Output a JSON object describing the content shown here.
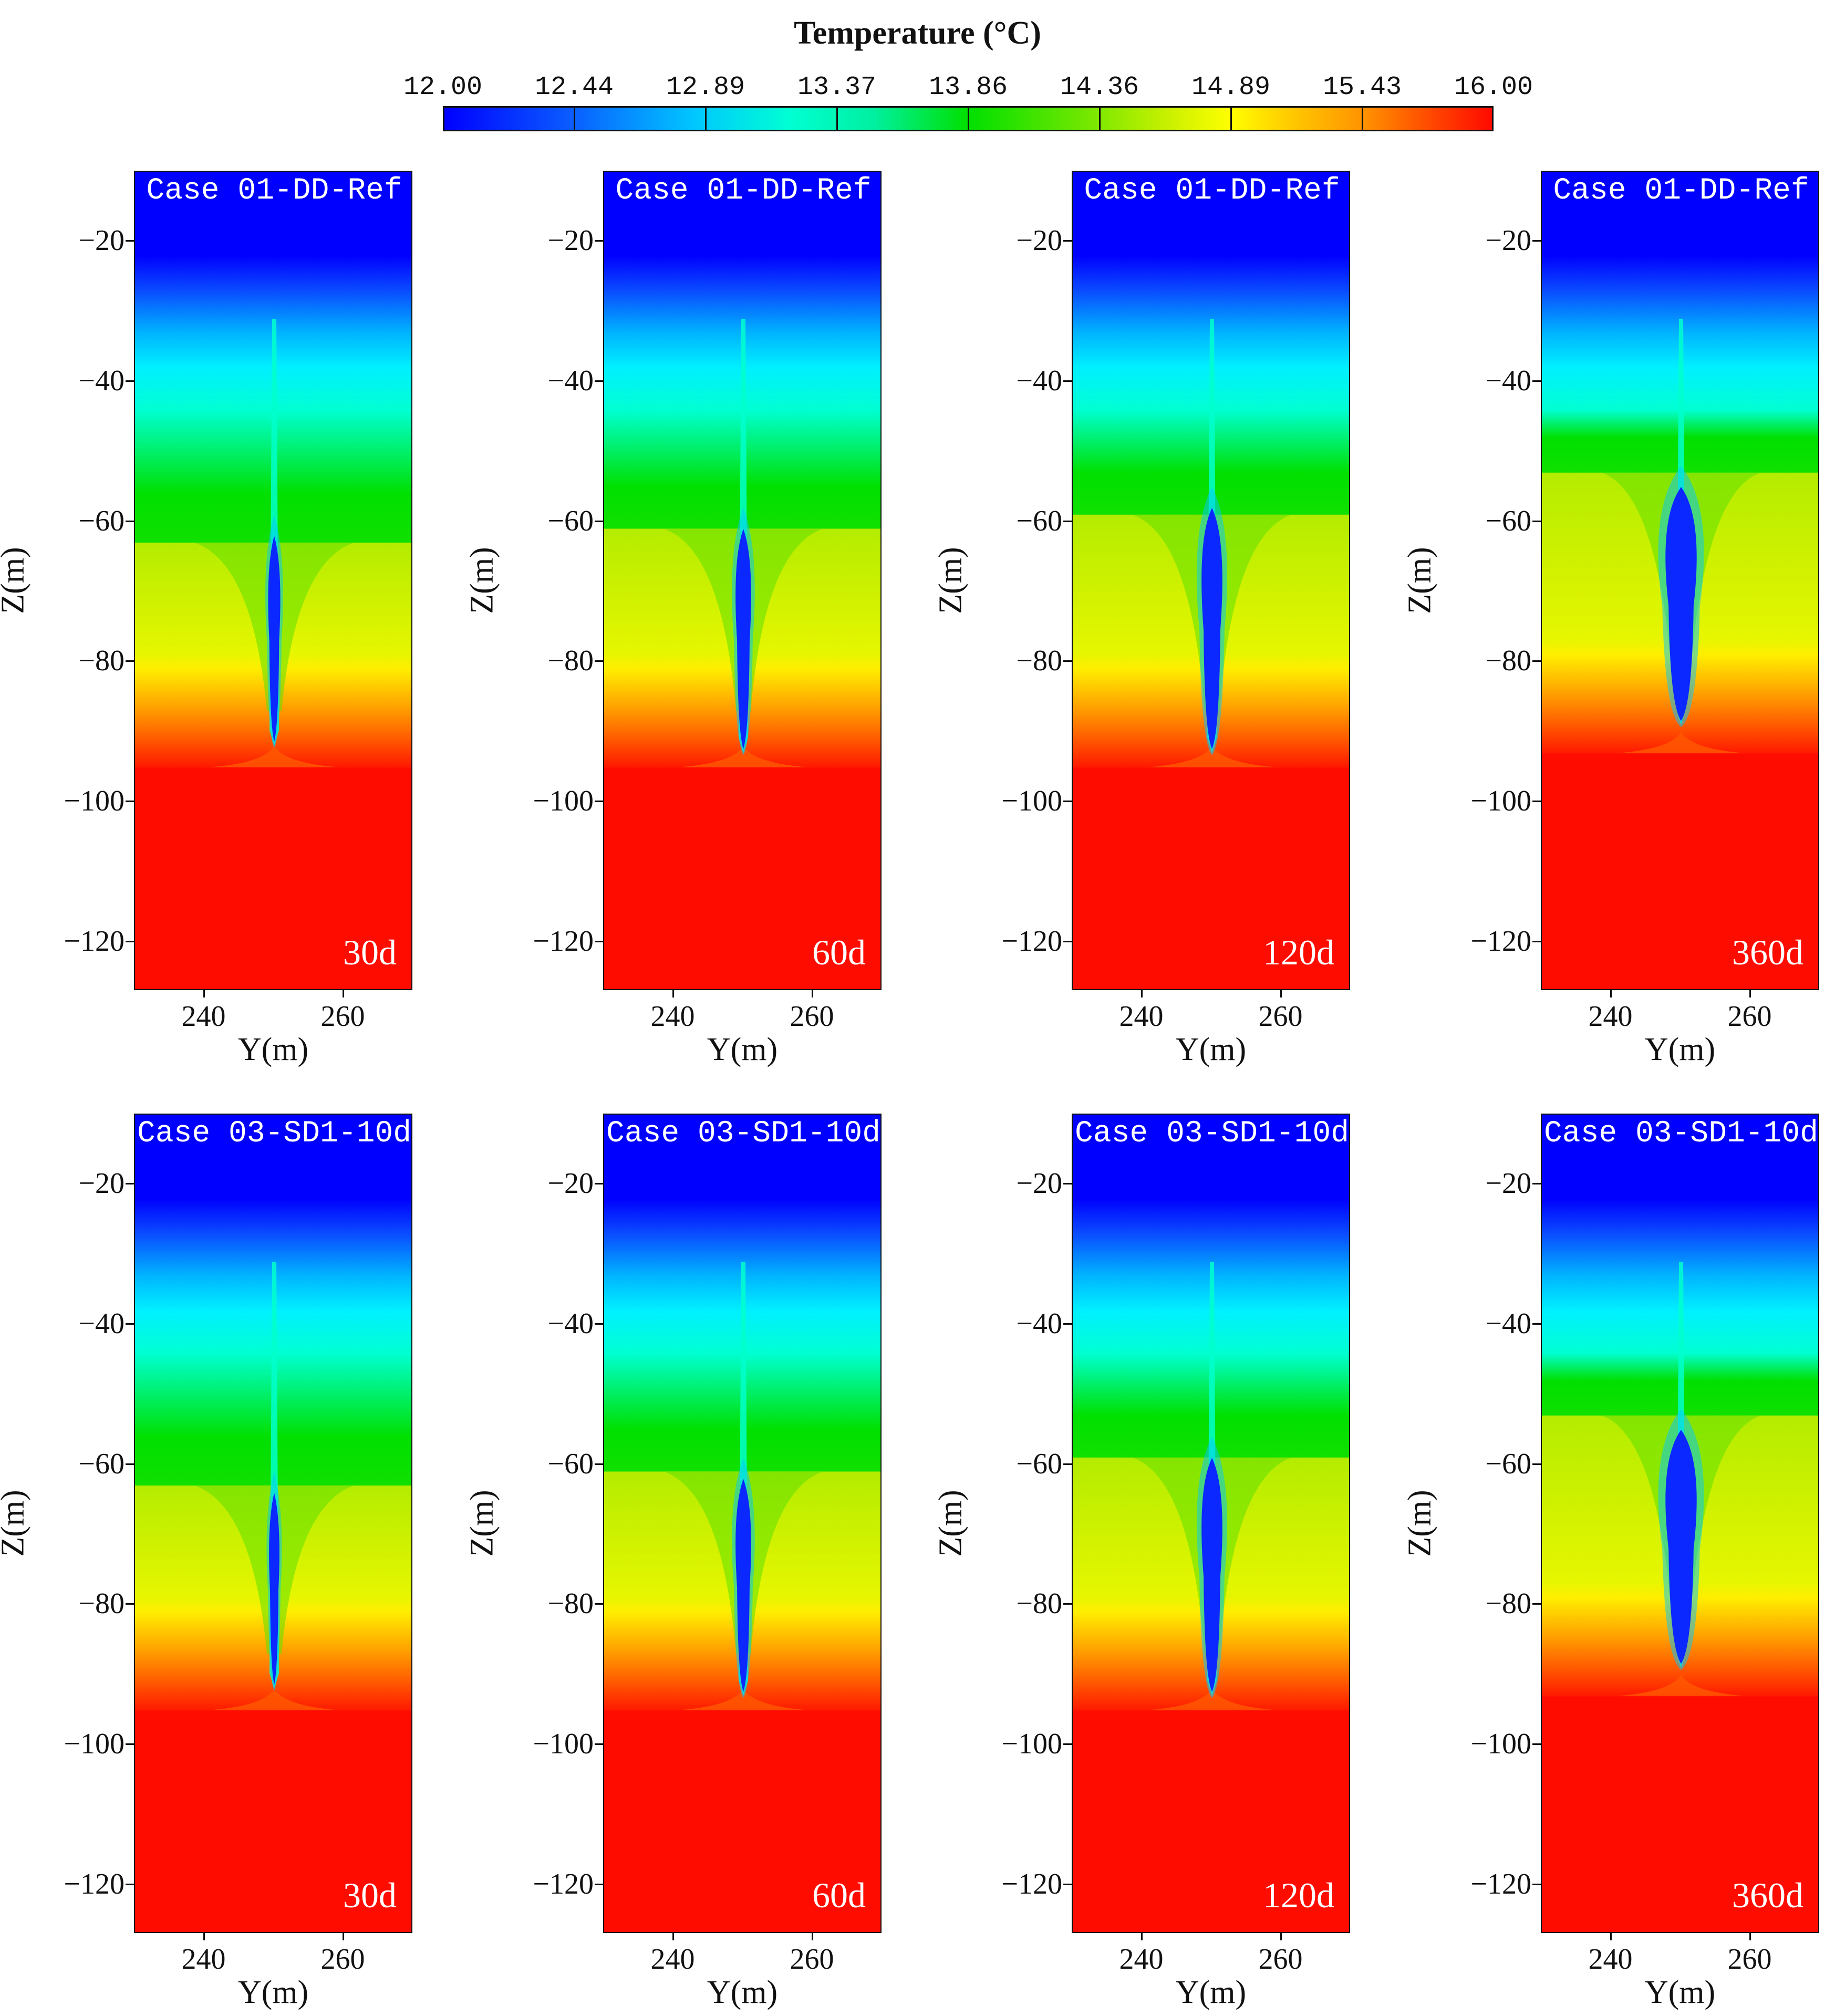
{
  "chart_data": {
    "type": "heatmap",
    "title": "Temperature (°C)",
    "colorbar": {
      "min": 12.0,
      "max": 16.0,
      "tick_labels": [
        "12.00",
        "12.44",
        "12.89",
        "13.37",
        "13.86",
        "14.36",
        "14.89",
        "15.43",
        "16.00"
      ],
      "tick_values": [
        12.0,
        12.44,
        12.89,
        13.37,
        13.86,
        14.36,
        14.89,
        15.43,
        16.0
      ],
      "colors": [
        "#0000ff",
        "#00c8ff",
        "#00ffd2",
        "#00e000",
        "#c8f000",
        "#ffff00",
        "#ff9000",
        "#ff0a00"
      ]
    },
    "xlabel": "Y(m)",
    "ylabel": "Z(m)",
    "xlim": [
      230,
      270
    ],
    "ylim": [
      -127,
      -10
    ],
    "xticks": [
      240,
      260
    ],
    "yticks": [
      -20,
      -40,
      -60,
      -80,
      -100,
      -120
    ],
    "ytick_labels": [
      "−20",
      "−40",
      "−60",
      "−80",
      "−100",
      "−120"
    ],
    "xtick_labels": [
      "240",
      "260"
    ],
    "well_center_y": 250,
    "panels": [
      {
        "case": "Case 01-DD-Ref",
        "time": "30d",
        "days": 30,
        "row": 0,
        "col": 0,
        "well_top_z": -31,
        "well_bottom_z": -92,
        "cold_core_top_z": -62,
        "cold_core_halfwidth": 0.7,
        "green_top_z": -56,
        "yellow_top_z": -63,
        "orange_top_z": -81,
        "red_top_z": -95
      },
      {
        "case": "Case 01-DD-Ref",
        "time": "60d",
        "days": 60,
        "row": 0,
        "col": 1,
        "well_top_z": -31,
        "well_bottom_z": -93,
        "cold_core_top_z": -61,
        "cold_core_halfwidth": 0.9,
        "green_top_z": -55,
        "yellow_top_z": -61,
        "orange_top_z": -81,
        "red_top_z": -95
      },
      {
        "case": "Case 01-DD-Ref",
        "time": "120d",
        "days": 120,
        "row": 0,
        "col": 2,
        "well_top_z": -31,
        "well_bottom_z": -93,
        "cold_core_top_z": -58,
        "cold_core_halfwidth": 1.2,
        "green_top_z": -53,
        "yellow_top_z": -59,
        "orange_top_z": -81,
        "red_top_z": -95
      },
      {
        "case": "Case 01-DD-Ref",
        "time": "360d",
        "days": 360,
        "row": 0,
        "col": 3,
        "well_top_z": -31,
        "well_bottom_z": -89,
        "cold_core_top_z": -55,
        "cold_core_halfwidth": 1.8,
        "green_top_z": -48,
        "yellow_top_z": -53,
        "orange_top_z": -79,
        "red_top_z": -93
      },
      {
        "case": "Case 03-SD1-10d",
        "time": "30d",
        "days": 30,
        "row": 1,
        "col": 0,
        "well_top_z": -31,
        "well_bottom_z": -92,
        "cold_core_top_z": -64,
        "cold_core_halfwidth": 0.6,
        "green_top_z": -56,
        "yellow_top_z": -63,
        "orange_top_z": -81,
        "red_top_z": -95
      },
      {
        "case": "Case 03-SD1-10d",
        "time": "60d",
        "days": 60,
        "row": 1,
        "col": 1,
        "well_top_z": -31,
        "well_bottom_z": -93,
        "cold_core_top_z": -62,
        "cold_core_halfwidth": 0.9,
        "green_top_z": -55,
        "yellow_top_z": -61,
        "orange_top_z": -81,
        "red_top_z": -95
      },
      {
        "case": "Case 03-SD1-10d",
        "time": "120d",
        "days": 120,
        "row": 1,
        "col": 2,
        "well_top_z": -31,
        "well_bottom_z": -93,
        "cold_core_top_z": -59,
        "cold_core_halfwidth": 1.2,
        "green_top_z": -53,
        "yellow_top_z": -59,
        "orange_top_z": -81,
        "red_top_z": -95
      },
      {
        "case": "Case 03-SD1-10d",
        "time": "360d",
        "days": 360,
        "row": 1,
        "col": 3,
        "well_top_z": -31,
        "well_bottom_z": -89,
        "cold_core_top_z": -55,
        "cold_core_halfwidth": 1.8,
        "green_top_z": -48,
        "yellow_top_z": -53,
        "orange_top_z": -79,
        "red_top_z": -93
      }
    ]
  }
}
